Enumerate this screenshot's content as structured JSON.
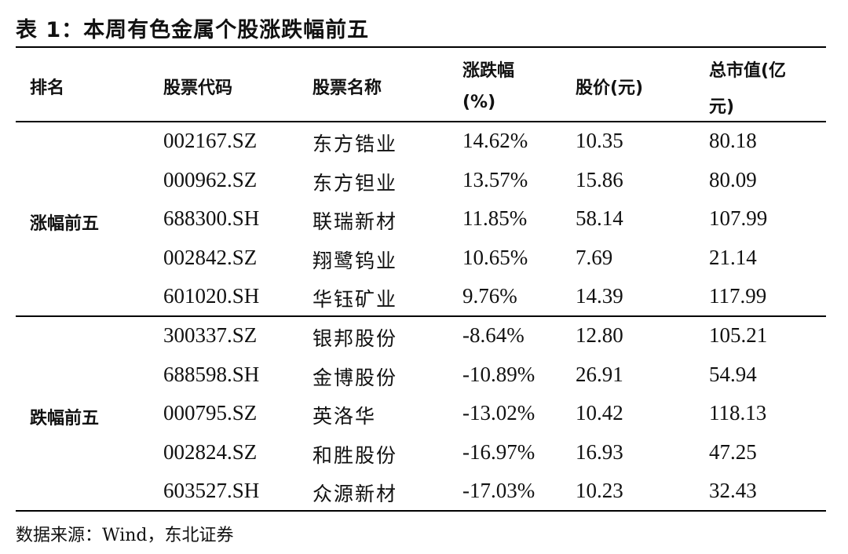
{
  "title": "表 1：本周有色金属个股涨跌幅前五",
  "headers": {
    "rank": "排名",
    "code": "股票代码",
    "name": "股票名称",
    "change_line1": "涨跌幅",
    "change_line2": "(%)",
    "price": "股价(元)",
    "mcap_line1": "总市值(亿",
    "mcap_line2": "元)"
  },
  "groups": [
    {
      "label": "涨幅前五",
      "rows": [
        {
          "code": "002167.SZ",
          "name": "东方锆业",
          "change": "14.62%",
          "price": "10.35",
          "mcap": "80.18"
        },
        {
          "code": "000962.SZ",
          "name": "东方钽业",
          "change": "13.57%",
          "price": "15.86",
          "mcap": "80.09"
        },
        {
          "code": "688300.SH",
          "name": "联瑞新材",
          "change": "11.85%",
          "price": "58.14",
          "mcap": "107.99"
        },
        {
          "code": "002842.SZ",
          "name": "翔鹭钨业",
          "change": "10.65%",
          "price": "7.69",
          "mcap": "21.14"
        },
        {
          "code": "601020.SH",
          "name": "华钰矿业",
          "change": "9.76%",
          "price": "14.39",
          "mcap": "117.99"
        }
      ]
    },
    {
      "label": "跌幅前五",
      "rows": [
        {
          "code": "300337.SZ",
          "name": "银邦股份",
          "change": "-8.64%",
          "price": "12.80",
          "mcap": "105.21"
        },
        {
          "code": "688598.SH",
          "name": "金博股份",
          "change": "-10.89%",
          "price": "26.91",
          "mcap": "54.94"
        },
        {
          "code": "000795.SZ",
          "name": "英洛华",
          "change": "-13.02%",
          "price": "10.42",
          "mcap": "118.13"
        },
        {
          "code": "002824.SZ",
          "name": "和胜股份",
          "change": "-16.97%",
          "price": "16.93",
          "mcap": "47.25"
        },
        {
          "code": "603527.SH",
          "name": "众源新材",
          "change": "-17.03%",
          "price": "10.23",
          "mcap": "32.43"
        }
      ]
    }
  ],
  "source": "数据来源：Wind，东北证券"
}
